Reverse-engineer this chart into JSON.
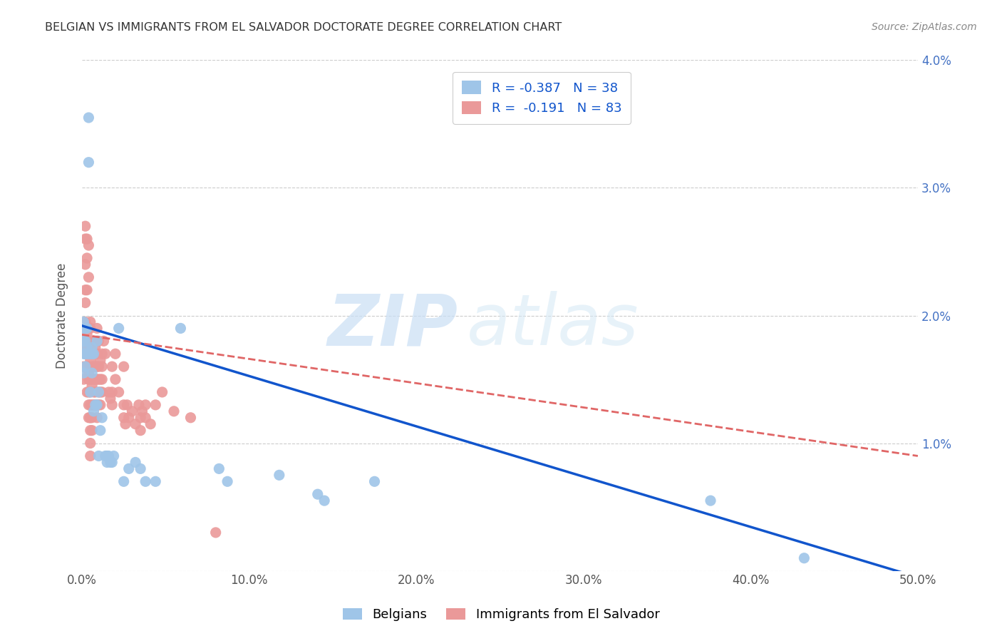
{
  "title": "BELGIAN VS IMMIGRANTS FROM EL SALVADOR DOCTORATE DEGREE CORRELATION CHART",
  "source": "Source: ZipAtlas.com",
  "ylabel": "Doctorate Degree",
  "xlim": [
    0.0,
    0.5
  ],
  "ylim": [
    0.0,
    0.04
  ],
  "xticks": [
    0.0,
    0.1,
    0.2,
    0.3,
    0.4,
    0.5
  ],
  "yticks": [
    0.0,
    0.01,
    0.02,
    0.03,
    0.04
  ],
  "xticklabels": [
    "0.0%",
    "10.0%",
    "20.0%",
    "30.0%",
    "40.0%",
    "50.0%"
  ],
  "yticklabels_right": [
    "",
    "1.0%",
    "2.0%",
    "3.0%",
    "4.0%"
  ],
  "belgian_color": "#9fc5e8",
  "salvador_color": "#ea9999",
  "belgian_R": "-0.387",
  "belgian_N": "38",
  "salvador_R": "-0.191",
  "salvador_N": "83",
  "belgian_line_color": "#1155cc",
  "salvador_line_color": "#e06666",
  "watermark_zip": "ZIP",
  "watermark_atlas": "atlas",
  "belgian_points": [
    [
      0.001,
      0.0195
    ],
    [
      0.001,
      0.019
    ],
    [
      0.001,
      0.018
    ],
    [
      0.001,
      0.017
    ],
    [
      0.001,
      0.0155
    ],
    [
      0.002,
      0.019
    ],
    [
      0.002,
      0.018
    ],
    [
      0.002,
      0.017
    ],
    [
      0.002,
      0.016
    ],
    [
      0.003,
      0.019
    ],
    [
      0.003,
      0.0175
    ],
    [
      0.003,
      0.017
    ],
    [
      0.004,
      0.0355
    ],
    [
      0.004,
      0.032
    ],
    [
      0.004,
      0.017
    ],
    [
      0.005,
      0.017
    ],
    [
      0.005,
      0.014
    ],
    [
      0.006,
      0.0175
    ],
    [
      0.006,
      0.017
    ],
    [
      0.006,
      0.0155
    ],
    [
      0.007,
      0.017
    ],
    [
      0.007,
      0.0125
    ],
    [
      0.008,
      0.013
    ],
    [
      0.009,
      0.018
    ],
    [
      0.009,
      0.013
    ],
    [
      0.01,
      0.014
    ],
    [
      0.01,
      0.009
    ],
    [
      0.011,
      0.011
    ],
    [
      0.012,
      0.012
    ],
    [
      0.014,
      0.009
    ],
    [
      0.015,
      0.009
    ],
    [
      0.015,
      0.0085
    ],
    [
      0.016,
      0.009
    ],
    [
      0.017,
      0.0085
    ],
    [
      0.018,
      0.0085
    ],
    [
      0.019,
      0.009
    ],
    [
      0.022,
      0.019
    ],
    [
      0.025,
      0.007
    ],
    [
      0.028,
      0.008
    ],
    [
      0.032,
      0.0085
    ],
    [
      0.035,
      0.008
    ],
    [
      0.038,
      0.007
    ],
    [
      0.044,
      0.007
    ],
    [
      0.059,
      0.019
    ],
    [
      0.082,
      0.008
    ],
    [
      0.087,
      0.007
    ],
    [
      0.118,
      0.0075
    ],
    [
      0.141,
      0.006
    ],
    [
      0.145,
      0.0055
    ],
    [
      0.175,
      0.007
    ],
    [
      0.376,
      0.0055
    ],
    [
      0.432,
      0.001
    ]
  ],
  "salvador_points": [
    [
      0.001,
      0.019
    ],
    [
      0.001,
      0.018
    ],
    [
      0.001,
      0.0175
    ],
    [
      0.001,
      0.016
    ],
    [
      0.001,
      0.015
    ],
    [
      0.002,
      0.027
    ],
    [
      0.002,
      0.026
    ],
    [
      0.002,
      0.024
    ],
    [
      0.002,
      0.022
    ],
    [
      0.002,
      0.021
    ],
    [
      0.002,
      0.0195
    ],
    [
      0.002,
      0.019
    ],
    [
      0.002,
      0.018
    ],
    [
      0.002,
      0.018
    ],
    [
      0.002,
      0.017
    ],
    [
      0.003,
      0.026
    ],
    [
      0.003,
      0.0245
    ],
    [
      0.003,
      0.022
    ],
    [
      0.003,
      0.0185
    ],
    [
      0.003,
      0.018
    ],
    [
      0.003,
      0.0175
    ],
    [
      0.003,
      0.017
    ],
    [
      0.003,
      0.016
    ],
    [
      0.003,
      0.014
    ],
    [
      0.004,
      0.0255
    ],
    [
      0.004,
      0.023
    ],
    [
      0.004,
      0.019
    ],
    [
      0.004,
      0.018
    ],
    [
      0.004,
      0.017
    ],
    [
      0.004,
      0.016
    ],
    [
      0.004,
      0.0155
    ],
    [
      0.004,
      0.015
    ],
    [
      0.004,
      0.014
    ],
    [
      0.004,
      0.013
    ],
    [
      0.004,
      0.012
    ],
    [
      0.005,
      0.0195
    ],
    [
      0.005,
      0.019
    ],
    [
      0.005,
      0.018
    ],
    [
      0.005,
      0.0165
    ],
    [
      0.005,
      0.015
    ],
    [
      0.005,
      0.014
    ],
    [
      0.005,
      0.013
    ],
    [
      0.005,
      0.012
    ],
    [
      0.005,
      0.012
    ],
    [
      0.005,
      0.011
    ],
    [
      0.005,
      0.01
    ],
    [
      0.005,
      0.009
    ],
    [
      0.006,
      0.017
    ],
    [
      0.006,
      0.016
    ],
    [
      0.006,
      0.015
    ],
    [
      0.006,
      0.0145
    ],
    [
      0.006,
      0.013
    ],
    [
      0.006,
      0.012
    ],
    [
      0.006,
      0.011
    ],
    [
      0.007,
      0.018
    ],
    [
      0.007,
      0.016
    ],
    [
      0.007,
      0.015
    ],
    [
      0.007,
      0.014
    ],
    [
      0.007,
      0.013
    ],
    [
      0.008,
      0.0175
    ],
    [
      0.008,
      0.016
    ],
    [
      0.008,
      0.015
    ],
    [
      0.008,
      0.014
    ],
    [
      0.008,
      0.013
    ],
    [
      0.009,
      0.019
    ],
    [
      0.009,
      0.018
    ],
    [
      0.009,
      0.017
    ],
    [
      0.009,
      0.016
    ],
    [
      0.009,
      0.015
    ],
    [
      0.009,
      0.013
    ],
    [
      0.009,
      0.012
    ],
    [
      0.01,
      0.018
    ],
    [
      0.01,
      0.016
    ],
    [
      0.01,
      0.015
    ],
    [
      0.01,
      0.014
    ],
    [
      0.01,
      0.013
    ],
    [
      0.011,
      0.0165
    ],
    [
      0.011,
      0.015
    ],
    [
      0.011,
      0.014
    ],
    [
      0.011,
      0.013
    ],
    [
      0.012,
      0.017
    ],
    [
      0.012,
      0.016
    ],
    [
      0.012,
      0.015
    ],
    [
      0.012,
      0.014
    ],
    [
      0.013,
      0.018
    ],
    [
      0.014,
      0.017
    ],
    [
      0.016,
      0.014
    ],
    [
      0.017,
      0.0135
    ],
    [
      0.018,
      0.016
    ],
    [
      0.018,
      0.014
    ],
    [
      0.018,
      0.013
    ],
    [
      0.02,
      0.017
    ],
    [
      0.02,
      0.015
    ],
    [
      0.022,
      0.014
    ],
    [
      0.025,
      0.016
    ],
    [
      0.025,
      0.013
    ],
    [
      0.025,
      0.012
    ],
    [
      0.026,
      0.0115
    ],
    [
      0.027,
      0.013
    ],
    [
      0.028,
      0.012
    ],
    [
      0.03,
      0.0125
    ],
    [
      0.032,
      0.0115
    ],
    [
      0.034,
      0.013
    ],
    [
      0.035,
      0.012
    ],
    [
      0.035,
      0.011
    ],
    [
      0.036,
      0.0125
    ],
    [
      0.038,
      0.013
    ],
    [
      0.038,
      0.012
    ],
    [
      0.041,
      0.0115
    ],
    [
      0.044,
      0.013
    ],
    [
      0.048,
      0.014
    ],
    [
      0.055,
      0.0125
    ],
    [
      0.065,
      0.012
    ],
    [
      0.08,
      0.003
    ]
  ],
  "belgian_trend_x": [
    0.0,
    0.5
  ],
  "belgian_trend_y": [
    0.0192,
    -0.0005
  ],
  "salvador_trend_x": [
    0.0,
    0.5
  ],
  "salvador_trend_y": [
    0.0185,
    0.009
  ]
}
